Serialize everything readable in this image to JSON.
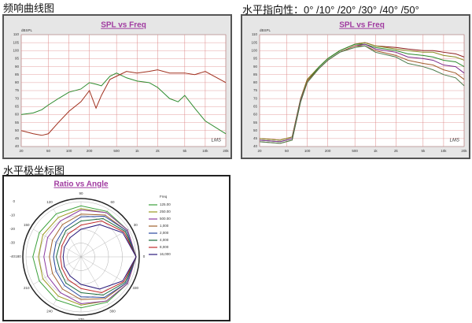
{
  "chart_data": [
    {
      "type": "line",
      "heading": "频响曲线图",
      "title": "SPL vs Freq",
      "ylabel": "dBSPL",
      "logo": "LMS",
      "log_x": true,
      "grid": true,
      "xlim": [
        20,
        20000
      ],
      "ylim": [
        40,
        110
      ],
      "xticks": [
        20,
        50,
        100,
        200,
        500,
        {
          "value": 1000,
          "label": "1k"
        },
        {
          "value": 2000,
          "label": "2k"
        },
        {
          "value": 5000,
          "label": "5k"
        },
        {
          "value": 10000,
          "label": "10k"
        },
        {
          "value": 20000,
          "label": "20k"
        }
      ],
      "yticks": [
        40,
        45,
        50,
        55,
        60,
        65,
        70,
        75,
        80,
        85,
        90,
        95,
        100,
        105,
        110
      ],
      "x": [
        20,
        30,
        40,
        50,
        70,
        100,
        150,
        200,
        250,
        300,
        400,
        500,
        700,
        1000,
        1500,
        2000,
        3000,
        4000,
        5000,
        7000,
        10000,
        20000
      ],
      "series": [
        {
          "color": "#2e8b2e",
          "values": [
            60,
            61,
            63,
            66,
            70,
            74,
            76,
            80,
            79,
            78,
            84,
            86,
            83,
            81,
            80,
            77,
            70,
            68,
            72,
            64,
            56,
            48
          ]
        },
        {
          "color": "#a0301e",
          "values": [
            50,
            48,
            47,
            48,
            55,
            62,
            68,
            75,
            64,
            72,
            82,
            84,
            87,
            86,
            87,
            88,
            86,
            86,
            86,
            85,
            87,
            80
          ]
        }
      ]
    },
    {
      "type": "line",
      "heading": "水平指向性：0°  /10°  /20°  /30°  /40°  /50°",
      "title": "SPL vs Freq",
      "ylabel": "dBSPL",
      "logo": "LMS",
      "log_x": true,
      "grid": true,
      "xlim": [
        20,
        20000
      ],
      "ylim": [
        40,
        110
      ],
      "xticks": [
        20,
        50,
        100,
        200,
        500,
        {
          "value": 1000,
          "label": "1k"
        },
        {
          "value": 2000,
          "label": "2k"
        },
        {
          "value": 5000,
          "label": "5k"
        },
        {
          "value": 10000,
          "label": "10k"
        },
        {
          "value": 20000,
          "label": "20k"
        }
      ],
      "yticks": [
        40,
        45,
        50,
        55,
        60,
        65,
        70,
        75,
        80,
        85,
        90,
        95,
        100,
        105,
        110
      ],
      "x": [
        20,
        40,
        60,
        80,
        100,
        150,
        200,
        300,
        500,
        700,
        1000,
        2000,
        3000,
        5000,
        7000,
        10000,
        15000,
        20000
      ],
      "series": [
        {
          "color": "#8b1a1a",
          "values": [
            45,
            44,
            46,
            70,
            82,
            90,
            95,
            100,
            104,
            105,
            103,
            102,
            101,
            100,
            100,
            99,
            98,
            96
          ]
        },
        {
          "color": "#8a8a20",
          "values": [
            45,
            44,
            46,
            70,
            82,
            90,
            95,
            100,
            104,
            105,
            103,
            101,
            100,
            99,
            99,
            97,
            96,
            94
          ]
        },
        {
          "color": "#2a8a2a",
          "values": [
            44,
            43,
            45,
            69,
            81,
            90,
            95,
            100,
            104,
            104,
            102,
            100,
            98,
            97,
            96,
            94,
            93,
            90
          ]
        },
        {
          "color": "#7a2a8a",
          "values": [
            44,
            43,
            45,
            69,
            81,
            89,
            94,
            99,
            103,
            104,
            101,
            99,
            96,
            95,
            94,
            91,
            90,
            86
          ]
        },
        {
          "color": "#a05a2a",
          "values": [
            43,
            42,
            44,
            68,
            81,
            89,
            94,
            99,
            103,
            103,
            100,
            97,
            94,
            92,
            91,
            88,
            86,
            82
          ]
        },
        {
          "color": "#4a7a4a",
          "values": [
            43,
            42,
            44,
            68,
            80,
            89,
            94,
            99,
            102,
            103,
            99,
            96,
            92,
            90,
            88,
            85,
            83,
            78
          ]
        }
      ]
    },
    {
      "type": "polar",
      "heading": "水平极坐标图",
      "title": "Ratio vs Angle",
      "legend_title": "Freq",
      "rlim": [
        -40,
        0
      ],
      "rticks": [
        0,
        -10,
        -20,
        -30,
        -40
      ],
      "angles": [
        0,
        30,
        60,
        90,
        120,
        150,
        180,
        210,
        240,
        270,
        300,
        330
      ],
      "series": [
        {
          "name": "125.00",
          "color": "#3aa03a",
          "values": [
            0,
            -1,
            -2,
            -3,
            -4,
            -5,
            -5,
            -5,
            -4,
            -3,
            -2,
            -1
          ]
        },
        {
          "name": "250.00",
          "color": "#9a9a20",
          "values": [
            0,
            -1,
            -3,
            -5,
            -7,
            -8,
            -9,
            -8,
            -7,
            -5,
            -3,
            -1
          ]
        },
        {
          "name": "500.00",
          "color": "#8a3aa0",
          "values": [
            0,
            -1,
            -3,
            -6,
            -10,
            -12,
            -13,
            -12,
            -10,
            -6,
            -3,
            -1
          ]
        },
        {
          "name": "1,000",
          "color": "#a0602a",
          "values": [
            0,
            -2,
            -5,
            -9,
            -13,
            -16,
            -17,
            -16,
            -13,
            -9,
            -5,
            -2
          ]
        },
        {
          "name": "2,000",
          "color": "#2a4aa0",
          "values": [
            0,
            -2,
            -6,
            -11,
            -16,
            -19,
            -20,
            -19,
            -16,
            -11,
            -6,
            -2
          ]
        },
        {
          "name": "4,000",
          "color": "#1a6a3a",
          "values": [
            0,
            -3,
            -8,
            -14,
            -18,
            -22,
            -22,
            -22,
            -18,
            -14,
            -8,
            -3
          ]
        },
        {
          "name": "8,000",
          "color": "#c02a2a",
          "values": [
            0,
            -4,
            -10,
            -17,
            -21,
            -24,
            -25,
            -24,
            -21,
            -17,
            -10,
            -4
          ]
        },
        {
          "name": "16,000",
          "color": "#2a1a7a",
          "values": [
            0,
            -5,
            -13,
            -20,
            -24,
            -26,
            -27,
            -26,
            -24,
            -20,
            -13,
            -5
          ]
        }
      ]
    }
  ]
}
